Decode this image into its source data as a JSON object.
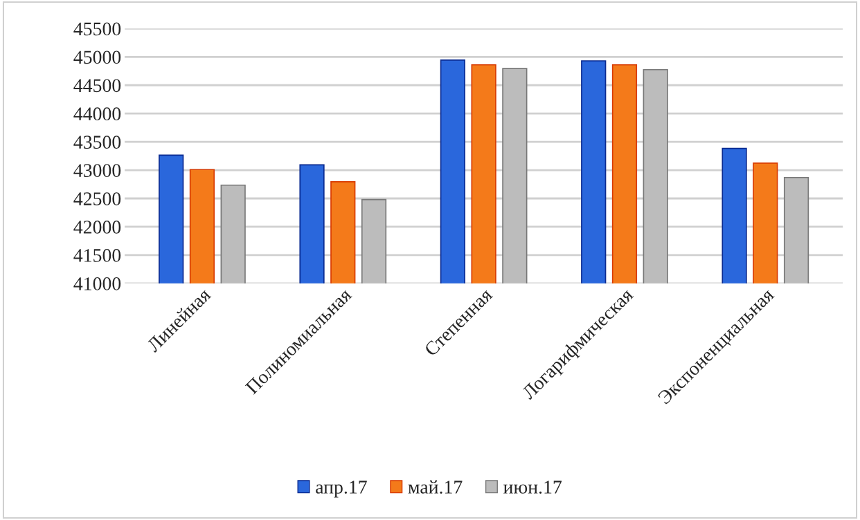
{
  "chart_data": {
    "type": "bar",
    "categories": [
      "Линейная",
      "Полиномиальная",
      "Степенная",
      "Логарифмическая",
      "Экспоненциальная"
    ],
    "series": [
      {
        "name": "апр.17",
        "color": "#2a67dc",
        "values": [
          43265,
          43095,
          44945,
          44930,
          43385
        ]
      },
      {
        "name": "май.17",
        "color": "#f47a1a",
        "values": [
          43010,
          42795,
          44860,
          44860,
          43125
        ]
      },
      {
        "name": "июн.17",
        "color": "#bcbcbc",
        "values": [
          42735,
          42480,
          44795,
          44775,
          42870
        ]
      }
    ],
    "ylim": [
      41000,
      45500
    ],
    "yticks": [
      41000,
      41500,
      42000,
      42500,
      43000,
      43500,
      44000,
      44500,
      45000,
      45500
    ],
    "grid": "y",
    "legend": "bottom"
  }
}
